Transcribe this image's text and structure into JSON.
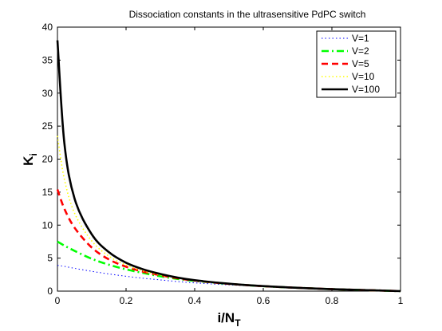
{
  "chart_data": {
    "type": "line",
    "title": "Dissociation constants in the ultrasensitive PdPC switch",
    "xlabel": "i/N",
    "xlabel_sub": "T",
    "ylabel": "K",
    "ylabel_sub": "i",
    "xlim": [
      0,
      1
    ],
    "ylim": [
      0,
      40
    ],
    "xticks": [
      0,
      0.2,
      0.4,
      0.6,
      0.8,
      1
    ],
    "xtick_labels": [
      "0",
      "0.2",
      "0.4",
      "0.6",
      "0.8",
      "1"
    ],
    "yticks": [
      0,
      5,
      10,
      15,
      20,
      25,
      30,
      35,
      40
    ],
    "ytick_labels": [
      "0",
      "5",
      "10",
      "15",
      "20",
      "25",
      "30",
      "35",
      "40"
    ],
    "grid": false,
    "legend_position": "top-right",
    "x": [
      0,
      0.02,
      0.05,
      0.1,
      0.15,
      0.2,
      0.25,
      0.3,
      0.35,
      0.4,
      0.5,
      0.6,
      0.7,
      0.8,
      0.9,
      1.0
    ],
    "series": [
      {
        "name": "V=1",
        "color": "#0000ff",
        "style": "dotted",
        "values": [
          3.9,
          3.75,
          3.45,
          3.0,
          2.6,
          2.25,
          1.95,
          1.7,
          1.45,
          1.25,
          0.95,
          0.7,
          0.5,
          0.3,
          0.15,
          0.0
        ]
      },
      {
        "name": "V=2",
        "color": "#00ff00",
        "style": "dashdot",
        "values": [
          7.5,
          6.9,
          6.1,
          4.9,
          4.0,
          3.3,
          2.75,
          2.25,
          1.85,
          1.55,
          1.1,
          0.75,
          0.5,
          0.3,
          0.15,
          0.0
        ]
      },
      {
        "name": "V=5",
        "color": "#ff0000",
        "style": "dashed",
        "values": [
          15.4,
          12.5,
          9.6,
          6.6,
          4.8,
          3.7,
          2.95,
          2.4,
          1.95,
          1.6,
          1.1,
          0.75,
          0.5,
          0.3,
          0.15,
          0.0
        ]
      },
      {
        "name": "V=10",
        "color": "#ffff00",
        "style": "dotted",
        "values": [
          23.5,
          17.0,
          11.8,
          7.6,
          5.3,
          3.95,
          3.05,
          2.45,
          2.0,
          1.62,
          1.1,
          0.75,
          0.5,
          0.3,
          0.15,
          0.0
        ]
      },
      {
        "name": "V=100",
        "color": "#000000",
        "style": "solid",
        "values": [
          38.0,
          22.5,
          14.0,
          8.6,
          5.9,
          4.3,
          3.3,
          2.6,
          2.05,
          1.65,
          1.12,
          0.76,
          0.5,
          0.3,
          0.15,
          0.0
        ]
      }
    ]
  }
}
